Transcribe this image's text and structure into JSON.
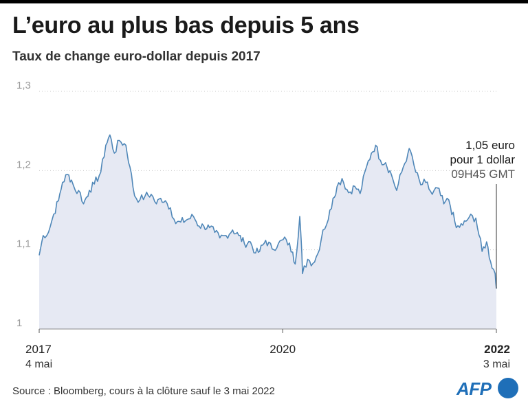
{
  "header": {
    "title": "L’euro au plus bas depuis 5 ans",
    "subtitle": "Taux de change euro-dollar depuis 2017"
  },
  "footer": {
    "source": "Source : Bloomberg, cours à la clôture sauf le 3 mai 2022",
    "logo_text": "AFP"
  },
  "colors": {
    "line": "#4f87b8",
    "area": "#e6e9f3",
    "grid": "#c8c8c8",
    "axis_text": "#9a9a9a",
    "logo": "#1f6fb8"
  },
  "chart_data": {
    "type": "area",
    "ylim": [
      1.0,
      1.3
    ],
    "yticks": [
      {
        "value": 1.0,
        "label": "1"
      },
      {
        "value": 1.1,
        "label": "1,1"
      },
      {
        "value": 1.2,
        "label": "1,2"
      },
      {
        "value": 1.3,
        "label": "1,3"
      }
    ],
    "grid": true,
    "x_start": "2017-05-04",
    "x_end": "2022-05-03",
    "xticks": [
      {
        "date": "2017-05-04",
        "label": "2017",
        "sublabel": "4 mai",
        "align": "start",
        "bold": false
      },
      {
        "date": "2020-01-01",
        "label": "2020",
        "sublabel": "",
        "align": "middle",
        "bold": false
      },
      {
        "date": "2022-05-03",
        "label": "2022",
        "sublabel": "3 mai",
        "align": "end",
        "bold": true
      }
    ],
    "series": [
      {
        "x": [
          "2017-05-04",
          "2017-05-20",
          "2017-06-10",
          "2017-07-01",
          "2017-07-20",
          "2017-08-05",
          "2017-08-25",
          "2017-09-10",
          "2017-09-25",
          "2017-10-15",
          "2017-10-28",
          "2017-11-20",
          "2017-12-10",
          "2018-01-05",
          "2018-01-25",
          "2018-02-10",
          "2018-02-28",
          "2018-03-20",
          "2018-04-15",
          "2018-05-01",
          "2018-05-20",
          "2018-06-10",
          "2018-07-01",
          "2018-07-25",
          "2018-08-15",
          "2018-09-01",
          "2018-09-20",
          "2018-10-10",
          "2018-10-31",
          "2018-11-20",
          "2018-12-15",
          "2019-01-10",
          "2019-02-01",
          "2019-02-20",
          "2019-03-15",
          "2019-04-05",
          "2019-04-25",
          "2019-05-20",
          "2019-06-15",
          "2019-07-10",
          "2019-08-01",
          "2019-08-25",
          "2019-09-15",
          "2019-10-01",
          "2019-10-25",
          "2019-11-20",
          "2019-12-15",
          "2020-01-15",
          "2020-02-10",
          "2020-02-20",
          "2020-03-09",
          "2020-03-15",
          "2020-03-20",
          "2020-04-10",
          "2020-05-01",
          "2020-05-20",
          "2020-06-10",
          "2020-07-01",
          "2020-07-20",
          "2020-08-05",
          "2020-08-25",
          "2020-09-20",
          "2020-10-15",
          "2020-11-05",
          "2020-12-01",
          "2020-12-20",
          "2021-01-06",
          "2021-01-25",
          "2021-02-15",
          "2021-03-10",
          "2021-03-31",
          "2021-04-20",
          "2021-05-15",
          "2021-05-25",
          "2021-06-15",
          "2021-07-05",
          "2021-07-25",
          "2021-08-20",
          "2021-09-10",
          "2021-10-05",
          "2021-10-25",
          "2021-11-24",
          "2021-12-20",
          "2022-01-14",
          "2022-02-10",
          "2022-03-07",
          "2022-03-25",
          "2022-04-10",
          "2022-04-28",
          "2022-05-03"
        ],
        "y": [
          1.093,
          1.118,
          1.122,
          1.145,
          1.162,
          1.185,
          1.195,
          1.188,
          1.175,
          1.172,
          1.158,
          1.175,
          1.183,
          1.198,
          1.232,
          1.245,
          1.222,
          1.238,
          1.232,
          1.205,
          1.168,
          1.163,
          1.168,
          1.17,
          1.158,
          1.165,
          1.162,
          1.153,
          1.133,
          1.135,
          1.138,
          1.142,
          1.13,
          1.13,
          1.128,
          1.122,
          1.115,
          1.118,
          1.125,
          1.118,
          1.108,
          1.11,
          1.096,
          1.098,
          1.112,
          1.101,
          1.108,
          1.113,
          1.097,
          1.082,
          1.142,
          1.112,
          1.07,
          1.088,
          1.083,
          1.095,
          1.125,
          1.138,
          1.165,
          1.18,
          1.19,
          1.172,
          1.18,
          1.171,
          1.205,
          1.222,
          1.232,
          1.213,
          1.21,
          1.195,
          1.175,
          1.198,
          1.222,
          1.225,
          1.198,
          1.182,
          1.185,
          1.17,
          1.178,
          1.158,
          1.163,
          1.128,
          1.131,
          1.141,
          1.14,
          1.098,
          1.11,
          1.085,
          1.07,
          1.051
        ]
      }
    ],
    "annotation": {
      "lines": [
        "1,05 euro",
        "pour 1 dollar",
        "09H45 GMT"
      ],
      "date": "2022-05-03",
      "value": 1.051
    }
  }
}
